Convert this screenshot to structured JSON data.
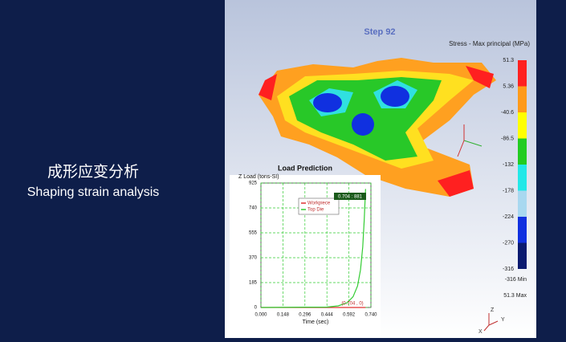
{
  "slide": {
    "title_zh": "成形应变分析",
    "title_en": "Shaping strain analysis"
  },
  "viewer": {
    "step": "Step  92",
    "legend": {
      "title": "Stress - Max principal (MPa)",
      "labels": [
        "51.3",
        "5.36",
        "-40.6",
        "-86.5",
        "-132",
        "-178",
        "-224",
        "-270",
        "-316"
      ],
      "colors": [
        "#ff2020",
        "#ff9a1a",
        "#ffff00",
        "#22cc22",
        "#22e8e8",
        "#a8d8f0",
        "#1030e0",
        "#0a1a70"
      ],
      "min_label": "-316  Min",
      "max_label": "51.3  Max"
    },
    "triad": [
      "Z",
      "Y",
      "X"
    ]
  },
  "chart_data": {
    "type": "line",
    "title": "Load Prediction",
    "y_label": "Z Load (tons-SI)",
    "x_label": "Time (sec)",
    "x": [
      0,
      0.444,
      0.52,
      0.58,
      0.62,
      0.65,
      0.67,
      0.685,
      0.695,
      0.704
    ],
    "series": [
      {
        "name": "Workpiece",
        "color": "#e03030",
        "values": [
          0,
          0,
          0,
          0,
          0,
          0,
          0,
          0,
          0,
          0
        ]
      },
      {
        "name": "Top Die",
        "color": "#33cc33",
        "values": [
          0,
          3,
          12,
          35,
          80,
          160,
          280,
          450,
          650,
          881
        ]
      }
    ],
    "xlim": [
      0,
      0.74
    ],
    "ylim": [
      0,
      925
    ],
    "xticks": [
      {
        "value": 0,
        "label": "0.000"
      },
      {
        "value": 0.148,
        "label": "0.148"
      },
      {
        "value": 0.296,
        "label": "0.296"
      },
      {
        "value": 0.444,
        "label": "0.444"
      },
      {
        "value": 0.592,
        "label": "0.592"
      },
      {
        "value": 0.74,
        "label": "0.740"
      }
    ],
    "yticks": [
      0,
      185,
      370,
      555,
      740,
      925
    ],
    "annotations": [
      "0.704 : 881",
      "(0.704 , 0)"
    ],
    "grid": true
  }
}
